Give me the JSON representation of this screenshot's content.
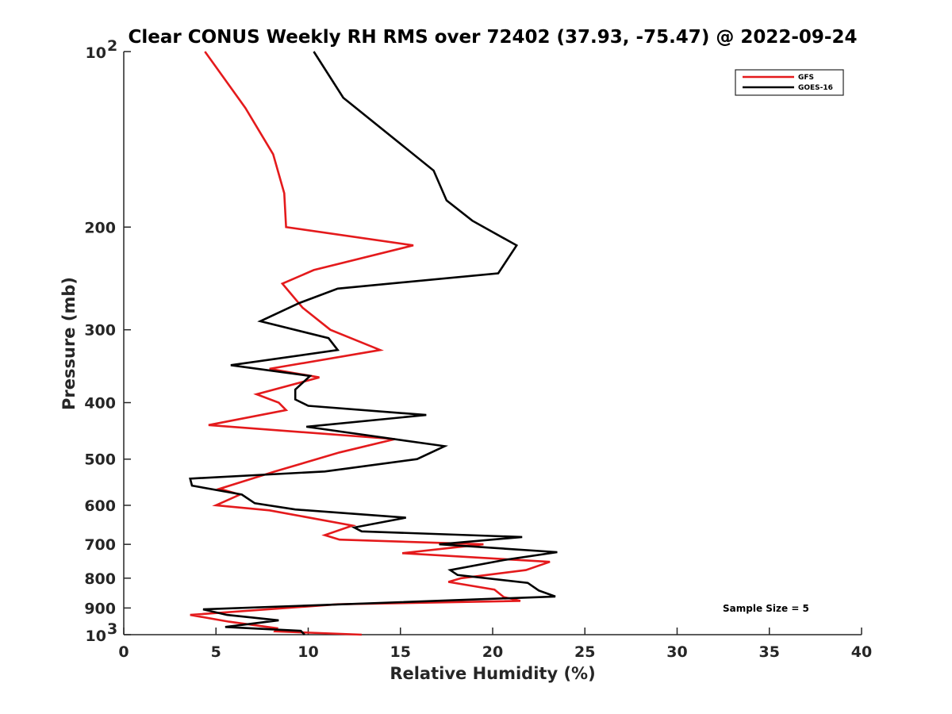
{
  "chart_data": {
    "type": "line",
    "title": "Clear CONUS Weekly RH RMS over 72402 (37.93, -75.47) @ 2022-09-24",
    "xlabel": "Relative Humidity (%)",
    "ylabel": "Pressure (mb)",
    "xlim": [
      0,
      40
    ],
    "ylim": [
      100,
      1000
    ],
    "yscale": "log",
    "y_reversed": true,
    "x_ticks": [
      0,
      5,
      10,
      15,
      20,
      25,
      30,
      35,
      40
    ],
    "y_ticks": [
      {
        "value": 200,
        "label": "200"
      },
      {
        "value": 300,
        "label": "300"
      },
      {
        "value": 400,
        "label": "400"
      },
      {
        "value": 500,
        "label": "500"
      },
      {
        "value": 600,
        "label": "600"
      },
      {
        "value": 700,
        "label": "700"
      },
      {
        "value": 800,
        "label": "800"
      },
      {
        "value": 900,
        "label": "900"
      }
    ],
    "y_power_ticks": [
      {
        "value": 100,
        "base": "10",
        "exp": "2"
      },
      {
        "value": 1000,
        "base": "10",
        "exp": "3"
      }
    ],
    "legend_position": "top-right",
    "annotation": "Sample Size = 5",
    "series": [
      {
        "name": "GFS",
        "color": "#e41a1c",
        "points": [
          [
            4.4,
            100
          ],
          [
            6.6,
            125
          ],
          [
            8.1,
            150
          ],
          [
            8.7,
            175
          ],
          [
            8.8,
            200
          ],
          [
            15.7,
            215
          ],
          [
            10.3,
            237
          ],
          [
            8.6,
            250
          ],
          [
            9.7,
            275
          ],
          [
            11.2,
            300
          ],
          [
            13.9,
            325
          ],
          [
            7.9,
            350
          ],
          [
            10.6,
            362
          ],
          [
            7.2,
            387
          ],
          [
            8.4,
            400
          ],
          [
            8.8,
            412
          ],
          [
            4.6,
            437
          ],
          [
            14.7,
            462
          ],
          [
            11.7,
            487
          ],
          [
            8.2,
            525
          ],
          [
            5.2,
            562
          ],
          [
            6.3,
            575
          ],
          [
            5.0,
            600
          ],
          [
            7.9,
            612
          ],
          [
            12.4,
            650
          ],
          [
            10.9,
            675
          ],
          [
            11.7,
            687
          ],
          [
            19.5,
            700
          ],
          [
            15.1,
            725
          ],
          [
            23.1,
            750
          ],
          [
            21.8,
            775
          ],
          [
            18.3,
            800
          ],
          [
            17.6,
            812
          ],
          [
            20.1,
            837
          ],
          [
            20.6,
            862
          ],
          [
            21.5,
            875
          ],
          [
            11.6,
            887
          ],
          [
            3.6,
            925
          ],
          [
            5.7,
            950
          ],
          [
            8.3,
            975
          ],
          [
            8.2,
            987
          ],
          [
            12.9,
            1000
          ]
        ]
      },
      {
        "name": "GOES-16",
        "color": "#000000",
        "points": [
          [
            10.3,
            100
          ],
          [
            11.9,
            120
          ],
          [
            16.8,
            160
          ],
          [
            17.5,
            180
          ],
          [
            18.9,
            195
          ],
          [
            21.3,
            215
          ],
          [
            20.3,
            240
          ],
          [
            11.6,
            255
          ],
          [
            9.5,
            270
          ],
          [
            7.4,
            290
          ],
          [
            11.1,
            310
          ],
          [
            11.6,
            325
          ],
          [
            5.8,
            345
          ],
          [
            10.1,
            360
          ],
          [
            9.3,
            380
          ],
          [
            9.3,
            395
          ],
          [
            10.0,
            405
          ],
          [
            16.4,
            420
          ],
          [
            9.9,
            440
          ],
          [
            17.4,
            475
          ],
          [
            15.9,
            500
          ],
          [
            10.9,
            525
          ],
          [
            3.6,
            540
          ],
          [
            3.7,
            555
          ],
          [
            6.4,
            575
          ],
          [
            7.1,
            595
          ],
          [
            9.3,
            610
          ],
          [
            15.3,
            630
          ],
          [
            12.5,
            655
          ],
          [
            12.9,
            665
          ],
          [
            21.6,
            680
          ],
          [
            17.1,
            700
          ],
          [
            23.5,
            722
          ],
          [
            20.6,
            745
          ],
          [
            17.7,
            775
          ],
          [
            18.1,
            790
          ],
          [
            21.9,
            815
          ],
          [
            22.5,
            840
          ],
          [
            23.4,
            860
          ],
          [
            4.3,
            905
          ],
          [
            5.6,
            925
          ],
          [
            8.4,
            945
          ],
          [
            5.5,
            970
          ],
          [
            9.6,
            985
          ],
          [
            9.8,
            1000
          ]
        ]
      }
    ]
  }
}
